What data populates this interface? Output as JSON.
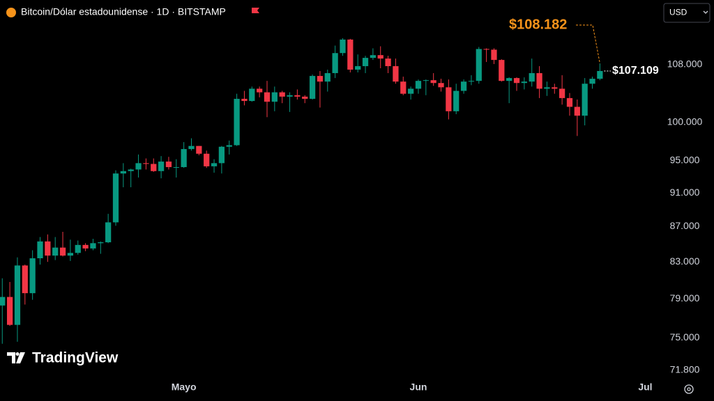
{
  "chart_data": {
    "type": "candlestick",
    "title": "Bitcoin/Dólar estadounidense · 1D · BITSTAMP",
    "currency": "USD",
    "brand": "TradingView",
    "log_scale": true,
    "grid": false,
    "up_color": "#089981",
    "down_color": "#f23645",
    "open": [
      78300,
      79200,
      76300,
      82600,
      79600,
      83400,
      85300,
      83700,
      84600,
      83700,
      84000,
      84900,
      84500,
      85100,
      85200,
      87500,
      93400,
      93700,
      93900,
      94700,
      94600,
      93700,
      94900,
      94200,
      94200,
      96500,
      96900,
      95900,
      94300,
      94700,
      96800,
      97000,
      103200,
      102900,
      104600,
      104100,
      102800,
      104100,
      103500,
      103700,
      103500,
      103200,
      106400,
      105600,
      106800,
      109700,
      111700,
      107300,
      107800,
      109000,
      109400,
      108900,
      107800,
      105600,
      103900,
      104600,
      105700,
      105800,
      105400,
      104800,
      101500,
      104300,
      105600,
      105700,
      110300,
      110200,
      108700,
      105700,
      106100,
      105400,
      105600,
      106800,
      104600,
      104800,
      104600,
      103300,
      102100,
      100900,
      105300,
      106000
    ],
    "high": [
      81200,
      80800,
      83500,
      82700,
      84300,
      85800,
      86100,
      85800,
      86400,
      85500,
      85400,
      85100,
      85600,
      85300,
      88500,
      93800,
      94700,
      94000,
      95800,
      95300,
      95300,
      95600,
      95500,
      95200,
      97400,
      97900,
      96900,
      96300,
      95200,
      96900,
      97600,
      103900,
      104300,
      104900,
      104900,
      105700,
      104900,
      104300,
      104100,
      104500,
      103700,
      106600,
      107100,
      107300,
      110800,
      111900,
      111800,
      109500,
      109300,
      110400,
      110700,
      109300,
      108900,
      106300,
      104900,
      105900,
      105900,
      106800,
      106000,
      105900,
      105300,
      105900,
      106500,
      110600,
      110400,
      110400,
      108800,
      106200,
      106200,
      106200,
      108900,
      107800,
      105600,
      105300,
      106500,
      104000,
      103100,
      106100,
      106300,
      108182
    ],
    "low": [
      74400,
      76200,
      74600,
      78400,
      78900,
      82700,
      83000,
      83200,
      83600,
      83100,
      83800,
      84200,
      84300,
      83900,
      85100,
      87100,
      91700,
      91700,
      92900,
      93900,
      93600,
      92800,
      93900,
      92900,
      94100,
      96300,
      95700,
      94100,
      93500,
      93400,
      95800,
      96900,
      102300,
      102800,
      103400,
      100700,
      101500,
      102600,
      101400,
      103100,
      102600,
      103100,
      102000,
      104200,
      106100,
      109300,
      106900,
      106900,
      106800,
      108700,
      107500,
      106800,
      105300,
      103700,
      103100,
      103900,
      103700,
      105000,
      104200,
      100400,
      101100,
      103900,
      105100,
      105300,
      108400,
      108100,
      105600,
      102600,
      104300,
      104500,
      104900,
      103300,
      103600,
      103900,
      102400,
      100900,
      98200,
      99600,
      104600,
      105800
    ],
    "close": [
      79200,
      76300,
      82600,
      79600,
      83400,
      85300,
      83700,
      84600,
      83700,
      84000,
      84900,
      84500,
      85100,
      85200,
      87500,
      93400,
      93700,
      93900,
      94700,
      94600,
      93700,
      94900,
      94200,
      94200,
      96500,
      96900,
      95900,
      94300,
      94700,
      96800,
      97000,
      103200,
      102900,
      104600,
      104100,
      102800,
      104100,
      103500,
      103700,
      103500,
      103200,
      106400,
      105600,
      106800,
      109700,
      111700,
      107300,
      107800,
      109000,
      109400,
      108900,
      107800,
      105600,
      103900,
      104600,
      105700,
      105800,
      105400,
      104800,
      101500,
      104300,
      105600,
      105700,
      110300,
      110200,
      108700,
      105700,
      106100,
      105400,
      105600,
      106800,
      104600,
      104800,
      104600,
      103300,
      102100,
      100900,
      105300,
      106000,
      107109
    ],
    "xlim": [
      -0.3,
      86.8
    ],
    "xticks": [
      {
        "value": 24,
        "label": "Mayo"
      },
      {
        "value": 55,
        "label": "Jun"
      },
      {
        "value": 85,
        "label": "Jul"
      }
    ],
    "ylim": [
      71270,
      117760
    ],
    "yticks": [
      {
        "value": 108000,
        "label": "108.000"
      },
      {
        "value": 100000,
        "label": "100.000"
      },
      {
        "value": 95000,
        "label": "95.000"
      },
      {
        "value": 91000,
        "label": "91.000"
      },
      {
        "value": 87000,
        "label": "87.000"
      },
      {
        "value": 83000,
        "label": "83.000"
      },
      {
        "value": 79000,
        "label": "79.000"
      },
      {
        "value": 75000,
        "label": "75.000"
      },
      {
        "value": 71800,
        "label": "71.800"
      }
    ],
    "last_price": {
      "value": 107109,
      "label": "$107.109"
    },
    "annotation": {
      "value": 108182,
      "label": "$108.182",
      "color": "#f7931a"
    }
  }
}
